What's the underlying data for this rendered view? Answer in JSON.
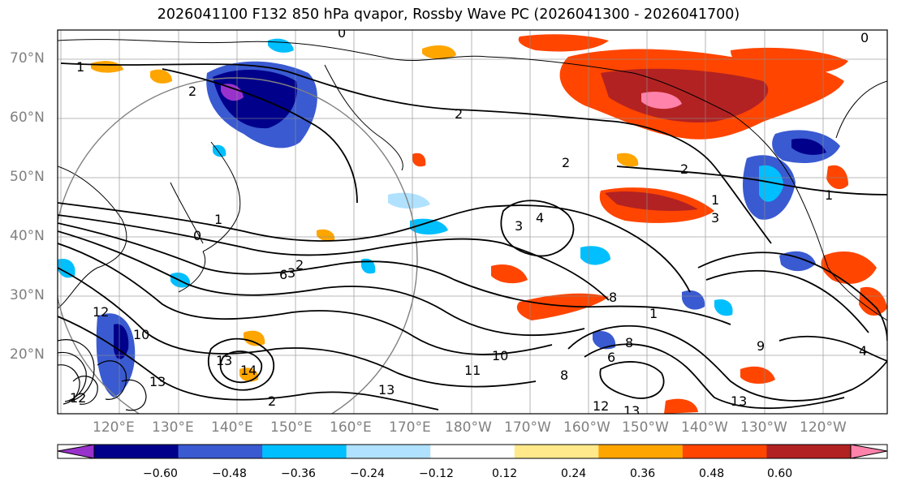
{
  "title": "2026041100 F132 850 hPa qvapor, Rossby Wave PC (2026041300 - 2026041700)",
  "lat_labels": [
    "70°N",
    "60°N",
    "50°N",
    "40°N",
    "30°N",
    "20°N"
  ],
  "lon_labels": [
    "120°E",
    "130°E",
    "140°E",
    "150°E",
    "160°E",
    "170°E",
    "180°W",
    "170°W",
    "160°W",
    "150°W",
    "140°W",
    "130°W",
    "120°W"
  ],
  "colorbar": {
    "ticks": [
      "−0.60",
      "−0.48",
      "−0.36",
      "−0.24",
      "−0.12",
      "0.12",
      "0.24",
      "0.36",
      "0.48",
      "0.60"
    ],
    "colors": [
      "#9932cc",
      "#00008b",
      "#3a5ad1",
      "#00bfff",
      "#b0e2ff",
      "#ffffff",
      "#ffe98a",
      "#ffa500",
      "#ff4500",
      "#b22222",
      "#ff82ab"
    ]
  },
  "contour_labels": [
    "0",
    "1",
    "2",
    "2",
    "2",
    "2",
    "1",
    "3",
    "3",
    "4",
    "1",
    "0",
    "2",
    "3",
    "6",
    "10",
    "12",
    "13",
    "13",
    "14",
    "13",
    "12",
    "12",
    "13",
    "11",
    "10",
    "8",
    "8",
    "8",
    "6",
    "9",
    "4",
    "13",
    "1",
    "0",
    "1",
    "2"
  ]
}
